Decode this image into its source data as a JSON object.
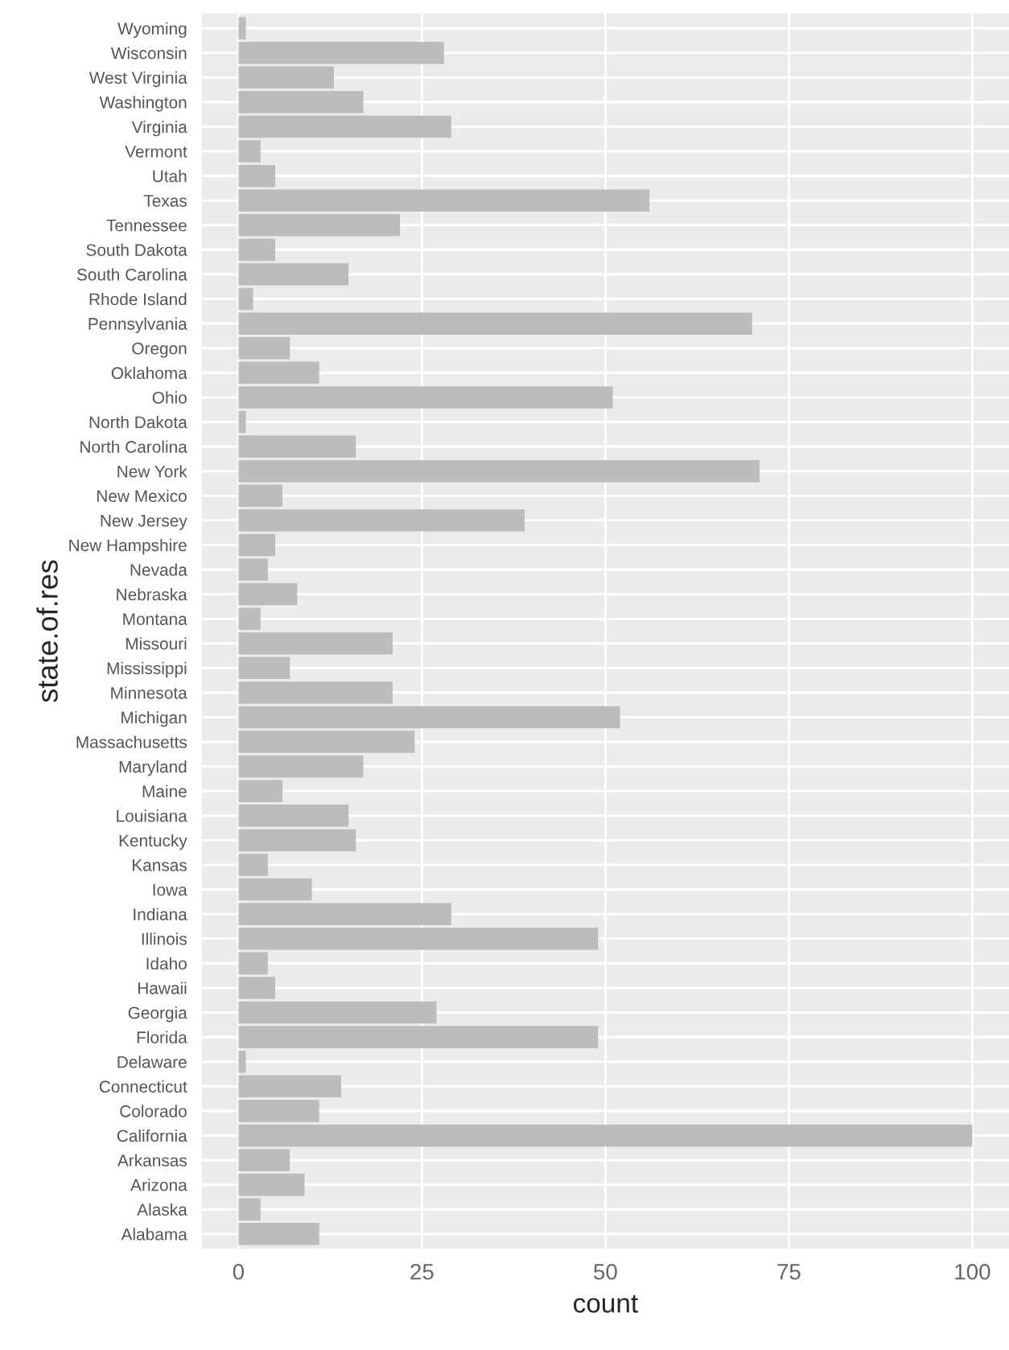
{
  "chart_data": {
    "type": "bar",
    "orientation": "horizontal",
    "xlabel": "count",
    "ylabel": "state.of.res",
    "categories": [
      "Wyoming",
      "Wisconsin",
      "West Virginia",
      "Washington",
      "Virginia",
      "Vermont",
      "Utah",
      "Texas",
      "Tennessee",
      "South Dakota",
      "South Carolina",
      "Rhode Island",
      "Pennsylvania",
      "Oregon",
      "Oklahoma",
      "Ohio",
      "North Dakota",
      "North Carolina",
      "New York",
      "New Mexico",
      "New Jersey",
      "New Hampshire",
      "Nevada",
      "Nebraska",
      "Montana",
      "Missouri",
      "Mississippi",
      "Minnesota",
      "Michigan",
      "Massachusetts",
      "Maryland",
      "Maine",
      "Louisiana",
      "Kentucky",
      "Kansas",
      "Iowa",
      "Indiana",
      "Illinois",
      "Idaho",
      "Hawaii",
      "Georgia",
      "Florida",
      "Delaware",
      "Connecticut",
      "Colorado",
      "California",
      "Arkansas",
      "Arizona",
      "Alaska",
      "Alabama"
    ],
    "values": [
      1,
      28,
      13,
      17,
      29,
      3,
      5,
      56,
      22,
      5,
      15,
      2,
      70,
      7,
      11,
      51,
      1,
      16,
      71,
      6,
      39,
      5,
      4,
      8,
      3,
      21,
      7,
      21,
      52,
      24,
      17,
      6,
      15,
      16,
      4,
      10,
      29,
      49,
      4,
      5,
      27,
      49,
      1,
      14,
      11,
      100,
      7,
      9,
      3,
      11
    ],
    "color": "#bcbcbe",
    "xlim": [
      -5,
      105
    ],
    "xticks": [
      0,
      25,
      50,
      75,
      100
    ],
    "grid": true
  }
}
